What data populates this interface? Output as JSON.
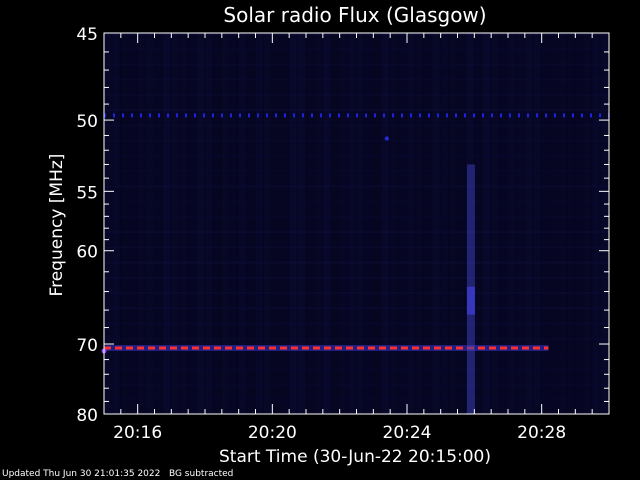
{
  "chart_data": {
    "type": "heatmap",
    "title": "Solar radio Flux (Glasgow)",
    "xlabel": "Start Time (30-Jun-22 20:15:00)",
    "ylabel": "Frequency [MHz]",
    "x_start_min": 0,
    "x_end_min": 15.0,
    "x_ticks": [
      {
        "label": "20:16",
        "min": 1.0
      },
      {
        "label": "20:20",
        "min": 5.0
      },
      {
        "label": "20:24",
        "min": 9.0
      },
      {
        "label": "20:28",
        "min": 13.0
      }
    ],
    "y_ticks": [
      45,
      50,
      55,
      60,
      70,
      80
    ],
    "y_scale": "reciprocal",
    "ylim": [
      45,
      80
    ],
    "colormap": {
      "low": "#05051e",
      "mid": "#1a1aa0",
      "high": "#ff2020"
    },
    "features": [
      {
        "name": "narrowband interference ~49.7 MHz",
        "freq_mhz": 49.7,
        "x_range_min": [
          0,
          15
        ],
        "intensity": "medium",
        "color": "#2020e0"
      },
      {
        "name": "narrowband interference ~70.5 MHz",
        "freq_mhz": 70.5,
        "x_range_min": [
          0,
          13.2
        ],
        "intensity": "high",
        "color": "#ff3030"
      },
      {
        "name": "broadband vertical feature",
        "time_min": 10.9,
        "freq_range_mhz": [
          53,
          80
        ],
        "intensity": "low-medium",
        "color": "#3a3ab0"
      },
      {
        "name": "isolated point",
        "time_min": 8.4,
        "freq_mhz": 51.2,
        "intensity": "medium",
        "color": "#2a2ae0"
      }
    ]
  },
  "footer": {
    "updated": "Updated Thu Jun 30 21:01:35 2022",
    "bg_note": "BG subtracted"
  }
}
